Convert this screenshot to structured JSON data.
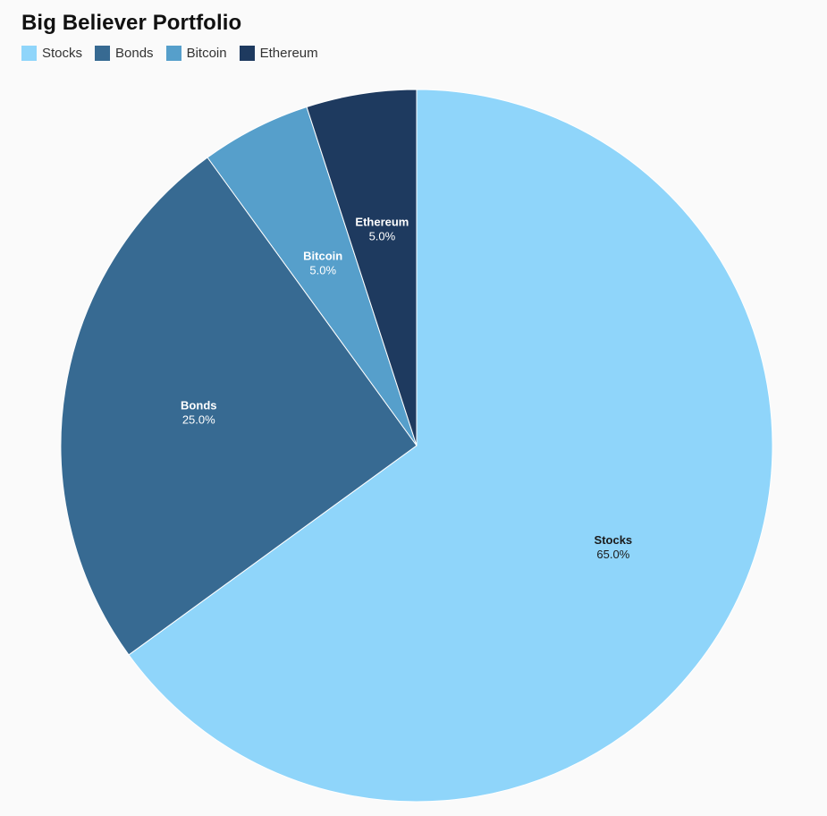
{
  "chart_data": {
    "type": "pie",
    "title": "Big Believer Portfolio",
    "slices": [
      {
        "label": "Stocks",
        "value": 65.0,
        "display": "65.0%",
        "color": "#8fd5fa",
        "text_color": "#1a1a1a"
      },
      {
        "label": "Bonds",
        "value": 25.0,
        "display": "25.0%",
        "color": "#376a92",
        "text_color": "#ffffff"
      },
      {
        "label": "Bitcoin",
        "value": 5.0,
        "display": "5.0%",
        "color": "#569fcb",
        "text_color": "#ffffff"
      },
      {
        "label": "Ethereum",
        "value": 5.0,
        "display": "5.0%",
        "color": "#1e3a5f",
        "text_color": "#ffffff"
      }
    ],
    "legend": {
      "position": "top-left"
    },
    "start": "12 o'clock",
    "direction": "clockwise"
  }
}
